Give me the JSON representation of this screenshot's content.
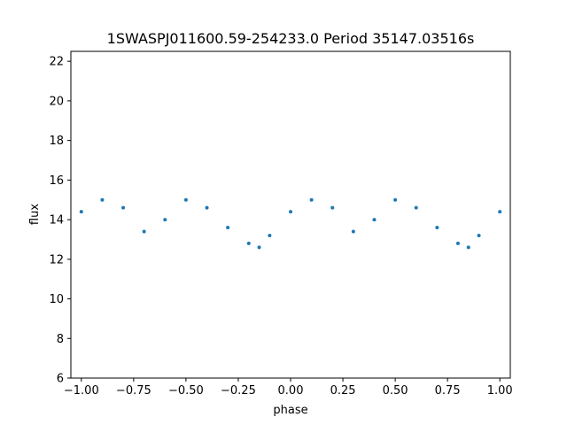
{
  "chart_data": {
    "type": "scatter",
    "title": "1SWASPJ011600.59-254233.0 Period 35147.03516s",
    "xlabel": "phase",
    "ylabel": "flux",
    "xlim": [
      -1.05,
      1.05
    ],
    "ylim": [
      6.0,
      22.5
    ],
    "x_ticks": [
      -1.0,
      -0.75,
      -0.5,
      -0.25,
      0.0,
      0.25,
      0.5,
      0.75,
      1.0
    ],
    "x_tick_labels": [
      "−1.00",
      "−0.75",
      "−0.50",
      "−0.25",
      "0.00",
      "0.25",
      "0.50",
      "0.75",
      "1.00"
    ],
    "y_ticks": [
      6,
      8,
      10,
      12,
      14,
      16,
      18,
      20,
      22
    ],
    "y_tick_labels": [
      "6",
      "8",
      "10",
      "12",
      "14",
      "16",
      "18",
      "20",
      "22"
    ],
    "grid": false,
    "marker_color": "#1f77b4",
    "series": [
      {
        "x": [
          -1.0,
          -0.9,
          -0.8,
          -0.7,
          -0.6,
          -0.5,
          -0.4,
          -0.3,
          -0.2,
          -0.15,
          -0.1,
          0.0,
          0.1,
          0.2,
          0.3,
          0.4,
          0.5,
          0.6,
          0.7,
          0.8,
          0.85,
          0.9,
          1.0
        ],
        "y": [
          14.4,
          15.0,
          14.6,
          13.4,
          14.0,
          15.0,
          14.6,
          13.6,
          12.8,
          12.6,
          13.2,
          14.4,
          15.0,
          14.6,
          13.4,
          14.0,
          15.0,
          14.6,
          13.6,
          12.8,
          12.6,
          13.2,
          14.4
        ]
      }
    ]
  }
}
